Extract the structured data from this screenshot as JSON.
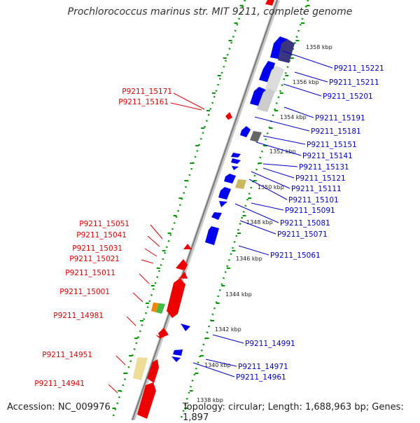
{
  "title": "Prochlorococcus marinus str. MIT 9211, complete genome",
  "footer": {
    "accession": "Accession: NC_009976",
    "topology": "Topology: circular; Length: 1,688,963 bp; Genes: 1,897"
  },
  "colors": {
    "forward": "#0000ee",
    "reverse": "#ee0000",
    "label_forward": "#0000cc",
    "label_reverse": "#dd0000",
    "backbone": "#999999",
    "ruler_dots": "#009900"
  },
  "ticks": [
    "1358 kbp",
    "1356 kbp",
    "1354 kbp",
    "1352 kbp",
    "1350 kbp",
    "1348 kbp",
    "1346 kbp",
    "1344 kbp",
    "1342 kbp",
    "1340 kbp",
    "1338 kbp"
  ],
  "labels_right": [
    "P9211_15221",
    "P9211_15211",
    "P9211_15201",
    "P9211_15191",
    "P9211_15181",
    "P9211_15151",
    "P9211_15141",
    "P9211_15131",
    "P9211_15121",
    "P9211_15111",
    "P9211_15101",
    "P9211_15091",
    "P9211_15081",
    "P9211_15071",
    "P9211_15061",
    "P9211_14991",
    "P9211_14971",
    "P9211_14961"
  ],
  "labels_left": [
    "P9211_15171",
    "P9211_15161",
    "P9211_15051",
    "P9211_15041",
    "P9211_15031",
    "P9211_15021",
    "P9211_15011",
    "P9211_15001",
    "P9211_14981",
    "P9211_14951",
    "P9211_14941"
  ]
}
